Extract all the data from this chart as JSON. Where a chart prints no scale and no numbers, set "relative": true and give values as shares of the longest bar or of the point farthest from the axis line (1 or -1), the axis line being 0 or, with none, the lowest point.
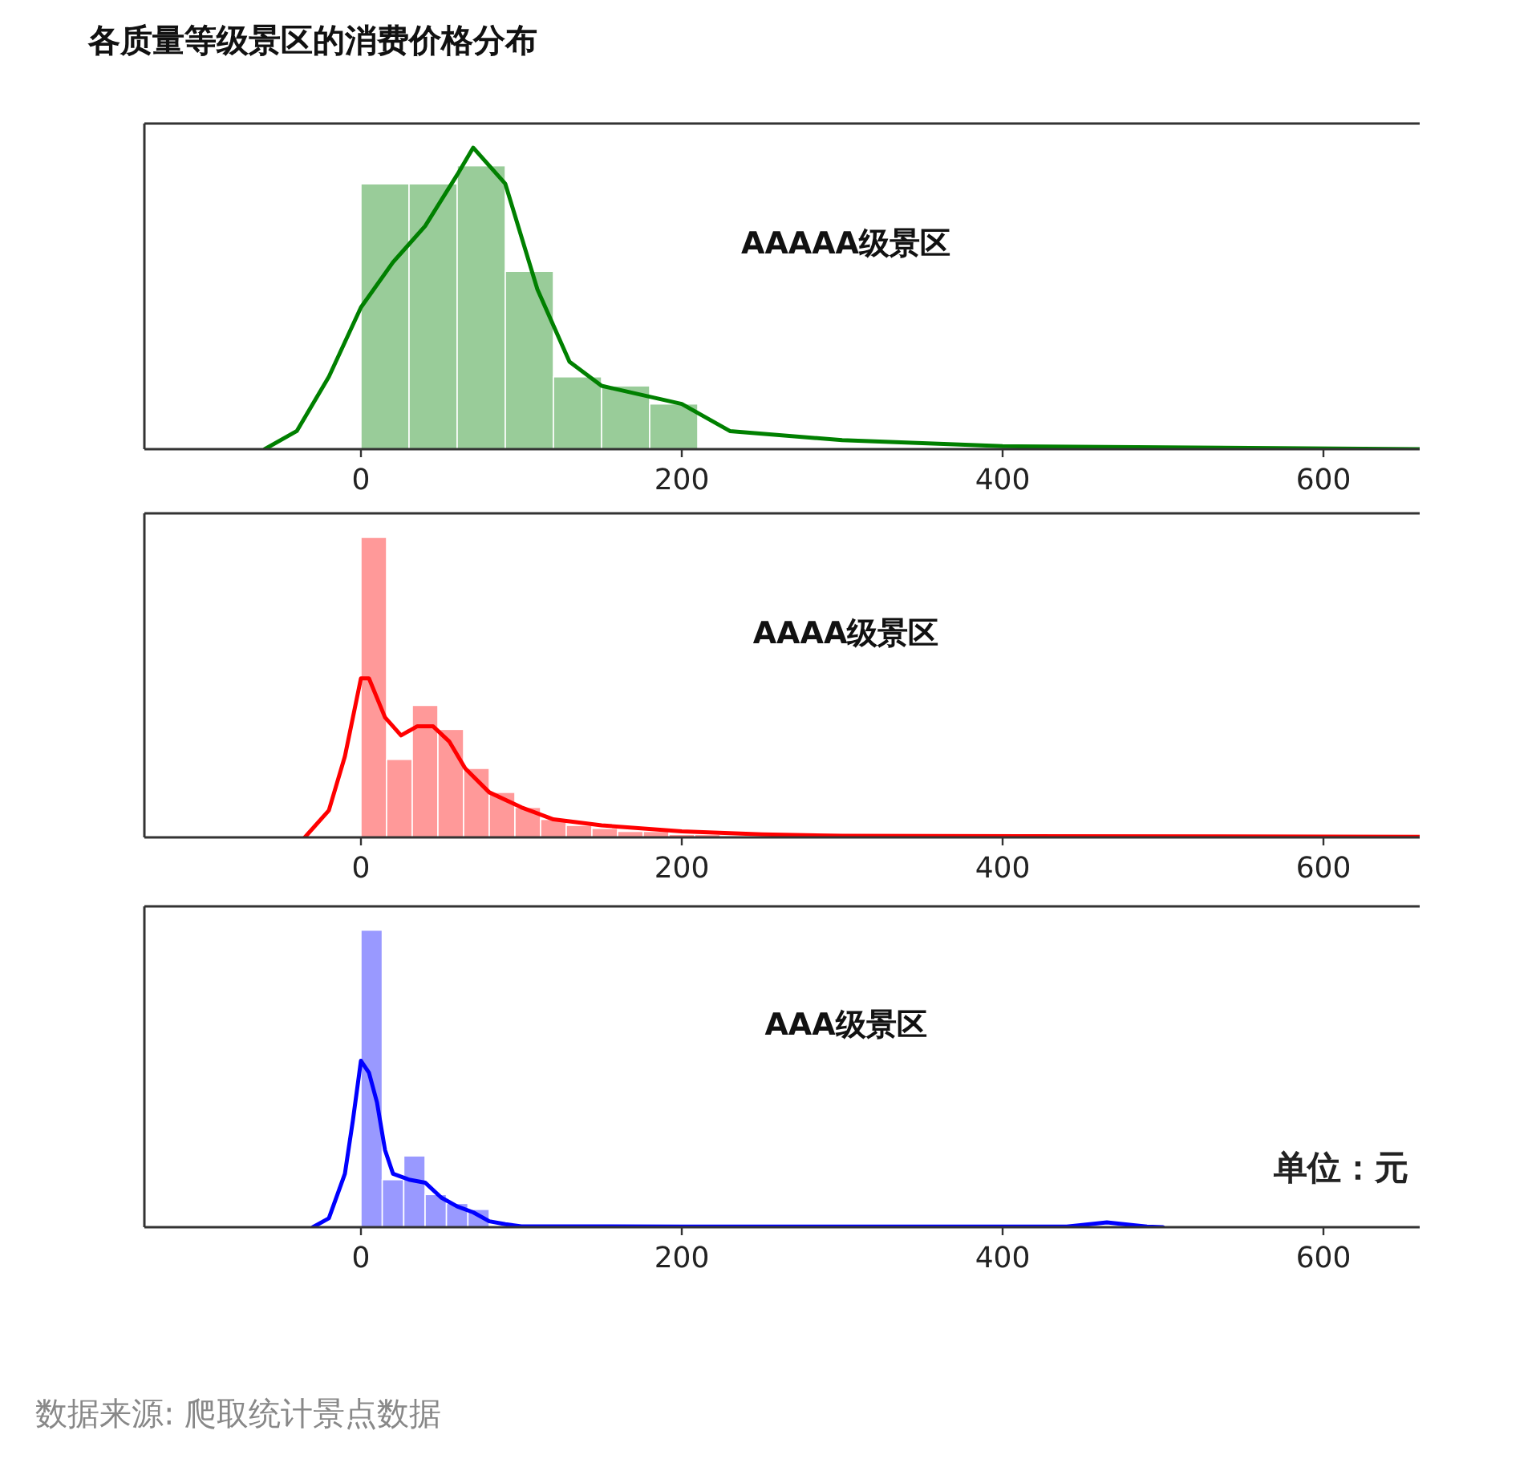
{
  "chart_data": [
    {
      "type": "histogram",
      "title": "各质量等级景区的消费价格分布",
      "relative": true,
      "tick_labels": "x",
      "xlim": [
        -135,
        660
      ],
      "xticks": [
        0,
        200,
        400,
        600
      ],
      "series": [
        {
          "type": "histogram",
          "name": "AAAAA级景区",
          "color": "#99cc99",
          "bins": [
            0,
            30,
            60,
            90,
            120,
            150,
            180,
            210
          ],
          "values": [
            0.88,
            0.88,
            0.94,
            0.59,
            0.24,
            0.21,
            0.15
          ]
        },
        {
          "type": "line",
          "color": "#008000",
          "x": [
            -60,
            -40,
            -20,
            0,
            20,
            40,
            60,
            70,
            90,
            110,
            130,
            150,
            200,
            230,
            300,
            400,
            660
          ],
          "values": [
            0,
            0.06,
            0.24,
            0.47,
            0.62,
            0.74,
            0.91,
            1,
            0.88,
            0.53,
            0.29,
            0.21,
            0.15,
            0.06,
            0.03,
            0.01,
            0
          ]
        }
      ]
    },
    {
      "type": "histogram",
      "relative": true,
      "tick_labels": "x",
      "xlim": [
        -135,
        660
      ],
      "xticks": [
        0,
        200,
        400,
        600
      ],
      "series": [
        {
          "type": "histogram",
          "name": "AAAA级景区",
          "color": "#ff9999",
          "bins": [
            0,
            16,
            32,
            48,
            64,
            80,
            96,
            112,
            128,
            144,
            160,
            176,
            192,
            208,
            224
          ],
          "values": [
            1,
            0.26,
            0.44,
            0.36,
            0.23,
            0.15,
            0.1,
            0.06,
            0.04,
            0.03,
            0.02,
            0.02,
            0.01,
            0.01
          ]
        },
        {
          "type": "line",
          "color": "#ff0000",
          "x": [
            -35,
            -20,
            -10,
            0,
            5,
            15,
            25,
            35,
            45,
            55,
            65,
            80,
            100,
            120,
            150,
            200,
            250,
            300,
            660
          ],
          "values": [
            0,
            0.09,
            0.27,
            0.53,
            0.53,
            0.4,
            0.34,
            0.37,
            0.37,
            0.32,
            0.23,
            0.15,
            0.1,
            0.06,
            0.04,
            0.02,
            0.01,
            0.005,
            0.002
          ]
        }
      ]
    },
    {
      "type": "histogram",
      "relative": true,
      "tick_labels": "x",
      "xlim": [
        -135,
        660
      ],
      "xticks": [
        0,
        200,
        400,
        600
      ],
      "annotations": [
        "单位：元",
        "数据来源: 爬取统计景点数据"
      ],
      "series": [
        {
          "type": "histogram",
          "name": "AAA级景区",
          "color": "#9999ff",
          "bins": [
            0,
            13.3,
            26.7,
            40,
            53.3,
            66.7,
            80
          ],
          "values": [
            1,
            0.16,
            0.24,
            0.11,
            0.08,
            0.06
          ]
        },
        {
          "type": "line",
          "color": "#0000ff",
          "x": [
            -30,
            -20,
            -10,
            -5,
            0,
            5,
            10,
            15,
            20,
            30,
            40,
            50,
            60,
            70,
            80,
            90,
            100,
            200,
            440,
            465,
            490,
            500
          ],
          "values": [
            0,
            0.03,
            0.18,
            0.36,
            0.56,
            0.52,
            0.42,
            0.26,
            0.18,
            0.16,
            0.15,
            0.1,
            0.07,
            0.05,
            0.02,
            0.01,
            0.003,
            0.002,
            0.002,
            0.016,
            0.002,
            0
          ]
        }
      ]
    }
  ]
}
